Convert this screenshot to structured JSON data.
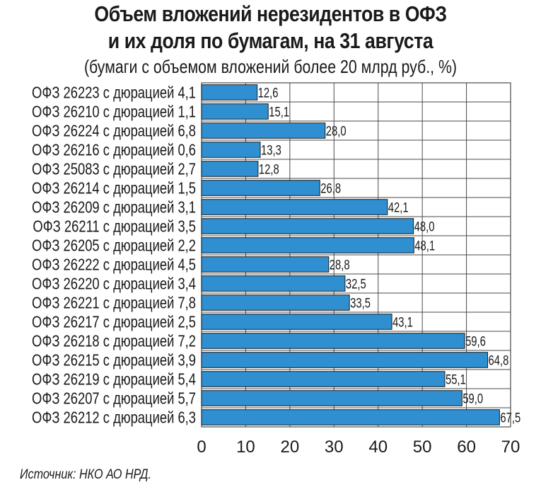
{
  "title_line1": "Объем вложений нерезидентов в ОФЗ",
  "title_line2": "и их доля по бумагам, на 31 августа",
  "subtitle": "(бумаги с объемом вложений более 20 млрд руб., %)",
  "source": "Источник: НКО АО НРД.",
  "colors": {
    "bar": "#2f8fd0",
    "bar_stroke": "#1c1c1c",
    "grid": "#4a4a4a",
    "text": "#1a1a1a"
  },
  "chart_data": {
    "type": "bar",
    "orientation": "horizontal",
    "categories": [
      "ОФЗ 26223 с дюрацией 4,1",
      "ОФЗ 26210 с дюрацией 1,1",
      "ОФЗ 26224 с дюрацией 6,8",
      "ОФЗ 26216 с дюрацией 0,6",
      "ОФЗ 25083 с дюрацией 2,7",
      "ОФЗ 26214 с дюрацией 1,5",
      "ОФЗ 26209 с дюрацией 3,1",
      "ОФЗ 26211 с дюрацией 3,5",
      "ОФЗ 26205 с дюрацией 2,2",
      "ОФЗ 26222 с дюрацией 4,5",
      "ОФЗ 26220 с дюрацией 3,4",
      "ОФЗ 26221 с дюрацией 7,8",
      "ОФЗ 26217 с дюрацией 2,5",
      "ОФЗ 26218 с дюрацией 7,2",
      "ОФЗ 26215 с дюрацией 3,9",
      "ОФЗ 26219 с дюрацией 5,4",
      "ОФЗ 26207 с дюрацией 5,7",
      "ОФЗ 26212 с дюрацией 6,3"
    ],
    "values": [
      12.6,
      15.1,
      28.0,
      13.3,
      12.8,
      26.8,
      42.1,
      48.0,
      48.1,
      28.8,
      32.5,
      33.5,
      43.1,
      59.6,
      64.8,
      55.1,
      59.0,
      67.5
    ],
    "value_labels": [
      "12,6",
      "15,1",
      "28,0",
      "13,3",
      "12,8",
      "26,8",
      "42,1",
      "48,0",
      "48,1",
      "28,8",
      "32,5",
      "33,5",
      "43,1",
      "59,6",
      "64,8",
      "55,1",
      "59,0",
      "67,5"
    ],
    "xlim": [
      0,
      70
    ],
    "xticks": [
      "0",
      "10",
      "20",
      "30",
      "40",
      "50",
      "60",
      "70"
    ],
    "grid": true
  }
}
